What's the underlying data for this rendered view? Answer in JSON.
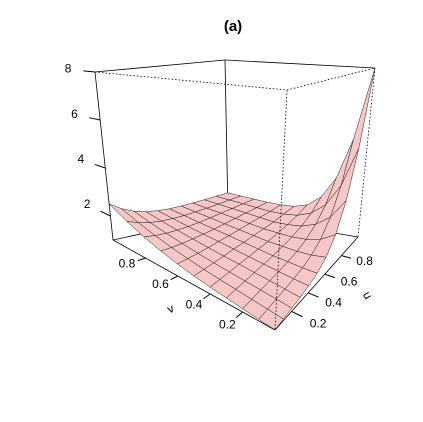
{
  "chart_data": {
    "type": "surface",
    "title": "(a)",
    "xlabel": "u",
    "ylabel": "v",
    "u": [
      0,
      0.1,
      0.2,
      0.3,
      0.4,
      0.5,
      0.6,
      0.7,
      0.8,
      0.9,
      1
    ],
    "v": [
      0,
      0.1,
      0.2,
      0.3,
      0.4,
      0.5,
      0.6,
      0.7,
      0.8,
      0.9,
      1
    ],
    "z": [
      [
        1.0,
        1.05,
        1.1,
        1.16,
        1.23,
        1.31,
        1.43,
        1.59,
        1.81,
        2.11,
        2.5
      ],
      [
        1.05,
        1.1,
        1.15,
        1.21,
        1.27,
        1.34,
        1.44,
        1.56,
        1.72,
        1.93,
        2.21
      ],
      [
        1.1,
        1.15,
        1.2,
        1.25,
        1.31,
        1.37,
        1.45,
        1.55,
        1.67,
        1.82,
        2.01
      ],
      [
        1.15,
        1.2,
        1.25,
        1.3,
        1.36,
        1.41,
        1.48,
        1.56,
        1.65,
        1.76,
        1.89
      ],
      [
        1.23,
        1.26,
        1.3,
        1.35,
        1.4,
        1.46,
        1.52,
        1.58,
        1.65,
        1.74,
        1.83
      ],
      [
        1.35,
        1.35,
        1.38,
        1.4,
        1.45,
        1.5,
        1.56,
        1.61,
        1.67,
        1.74,
        1.81
      ],
      [
        1.6,
        1.51,
        1.48,
        1.49,
        1.5,
        1.55,
        1.6,
        1.65,
        1.71,
        1.77,
        1.83
      ],
      [
        2.11,
        1.8,
        1.65,
        1.59,
        1.59,
        1.6,
        1.65,
        1.7,
        1.75,
        1.8,
        1.86
      ],
      [
        3.1,
        2.35,
        1.95,
        1.75,
        1.68,
        1.65,
        1.7,
        1.75,
        1.8,
        1.85,
        1.9
      ],
      [
        4.9,
        3.33,
        2.45,
        2.01,
        1.81,
        1.75,
        1.75,
        1.8,
        1.85,
        1.9,
        1.95
      ],
      [
        8.0,
        5.0,
        3.3,
        2.42,
        2.0,
        1.85,
        1.83,
        1.85,
        1.9,
        1.95,
        2.0
      ]
    ],
    "ulim": [
      0,
      1
    ],
    "vlim": [
      0,
      1
    ],
    "zlim": [
      1,
      8
    ],
    "uticks": [
      0.2,
      0.4,
      0.6,
      0.8
    ],
    "vticks": [
      0.2,
      0.4,
      0.6,
      0.8
    ],
    "zticks": [
      2,
      4,
      6,
      8
    ],
    "color": "#f7c6c6"
  }
}
